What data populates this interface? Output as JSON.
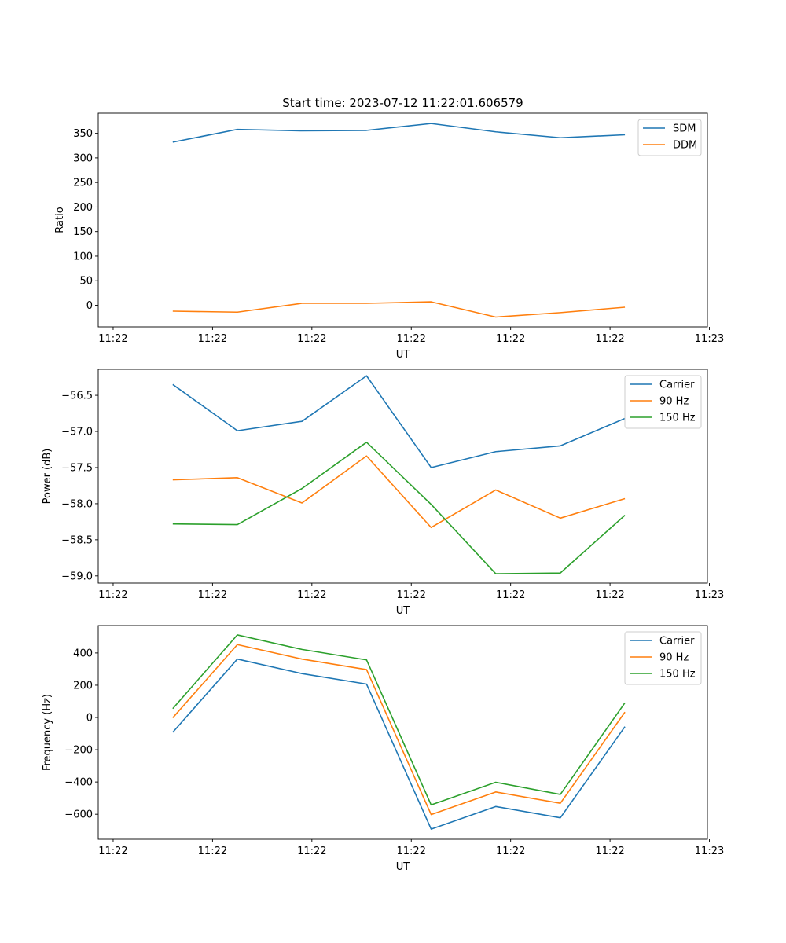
{
  "chart_data": [
    {
      "type": "line",
      "title": "Start time: 2023-07-12 11:22:01.606579",
      "xlabel": "UT",
      "ylabel": "Ratio",
      "x": [
        0.6,
        1.25,
        1.9,
        2.55,
        3.2,
        3.85,
        4.5,
        5.15
      ],
      "x_ticks": [
        0,
        1,
        2,
        3,
        4,
        5,
        6
      ],
      "x_tick_labels": [
        "11:22",
        "11:22",
        "11:22",
        "11:22",
        "11:22",
        "11:22",
        "11:23"
      ],
      "xlim": [
        -0.15,
        5.98
      ],
      "y_ticks": [
        0,
        50,
        100,
        150,
        200,
        250,
        300,
        350
      ],
      "y_tick_labels": [
        "0",
        "50",
        "100",
        "150",
        "200",
        "250",
        "300",
        "350"
      ],
      "ylim": [
        -44,
        391
      ],
      "legend": "top-right",
      "series": [
        {
          "name": "SDM",
          "color": "#1f77b4",
          "values": [
            332,
            358,
            355,
            356,
            370,
            353,
            341,
            347
          ]
        },
        {
          "name": "DDM",
          "color": "#ff7f0e",
          "values": [
            -12,
            -14,
            4,
            4,
            7,
            -24,
            -15,
            -4
          ]
        }
      ]
    },
    {
      "type": "line",
      "title": "",
      "xlabel": "UT",
      "ylabel": "Power (dB)",
      "x": [
        0.6,
        1.25,
        1.9,
        2.55,
        3.2,
        3.85,
        4.5,
        5.15
      ],
      "x_ticks": [
        0,
        1,
        2,
        3,
        4,
        5,
        6
      ],
      "x_tick_labels": [
        "11:22",
        "11:22",
        "11:22",
        "11:22",
        "11:22",
        "11:22",
        "11:23"
      ],
      "xlim": [
        -0.15,
        5.98
      ],
      "y_ticks": [
        -59.0,
        -58.5,
        -58.0,
        -57.5,
        -57.0,
        -56.5
      ],
      "y_tick_labels": [
        "−59.0",
        "−58.5",
        "−58.0",
        "−57.5",
        "−57.0",
        "−56.5"
      ],
      "ylim": [
        -59.1,
        -56.14
      ],
      "legend": "top-right",
      "series": [
        {
          "name": "Carrier",
          "color": "#1f77b4",
          "values": [
            -56.35,
            -56.99,
            -56.86,
            -56.23,
            -57.5,
            -57.28,
            -57.2,
            -56.82
          ]
        },
        {
          "name": "90 Hz",
          "color": "#ff7f0e",
          "values": [
            -57.67,
            -57.64,
            -57.99,
            -57.34,
            -58.33,
            -57.81,
            -58.2,
            -57.93
          ]
        },
        {
          "name": "150 Hz",
          "color": "#2ca02c",
          "values": [
            -58.28,
            -58.29,
            -57.79,
            -57.15,
            -58.01,
            -58.97,
            -58.96,
            -58.16
          ]
        }
      ]
    },
    {
      "type": "line",
      "title": "",
      "xlabel": "UT",
      "ylabel": "Frequency (Hz)",
      "x": [
        0.6,
        1.25,
        1.9,
        2.55,
        3.2,
        3.85,
        4.5,
        5.15
      ],
      "x_ticks": [
        0,
        1,
        2,
        3,
        4,
        5,
        6
      ],
      "x_tick_labels": [
        "11:22",
        "11:22",
        "11:22",
        "11:22",
        "11:22",
        "11:22",
        "11:23"
      ],
      "xlim": [
        -0.15,
        5.98
      ],
      "y_ticks": [
        -600,
        -400,
        -200,
        0,
        200,
        400
      ],
      "y_tick_labels": [
        "−600",
        "−400",
        "−200",
        "0",
        "200",
        "400"
      ],
      "ylim": [
        -755,
        570
      ],
      "legend": "top-right",
      "series": [
        {
          "name": "Carrier",
          "color": "#1f77b4",
          "values": [
            -92,
            362,
            272,
            207,
            -692,
            -552,
            -622,
            -57
          ]
        },
        {
          "name": "90 Hz",
          "color": "#ff7f0e",
          "values": [
            -2,
            452,
            362,
            297,
            -602,
            -462,
            -532,
            33
          ]
        },
        {
          "name": "150 Hz",
          "color": "#2ca02c",
          "values": [
            55,
            512,
            422,
            357,
            -542,
            -402,
            -477,
            91
          ]
        }
      ]
    }
  ]
}
